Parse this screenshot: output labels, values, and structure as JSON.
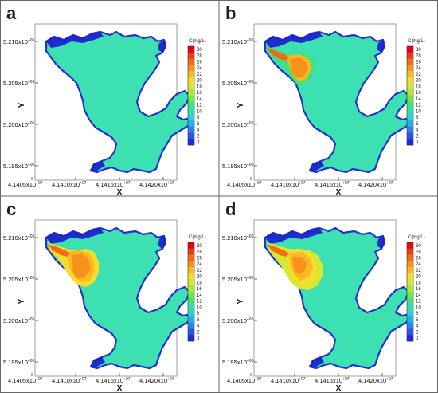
{
  "chart_data": [
    {
      "type": "heatmap",
      "panel_label": "a",
      "xlabel": "X",
      "ylabel": "Y",
      "x_ticks": [
        {
          "base": "4.1405x10",
          "exp": "+07"
        },
        {
          "base": "4.1410x10",
          "exp": "+07"
        },
        {
          "base": "4.1415x10",
          "exp": "+07"
        },
        {
          "base": "4.1420x10",
          "exp": "+07"
        }
      ],
      "y_ticks": [
        {
          "base": "5.210x10",
          "exp": "+06"
        },
        {
          "base": "5.205x10",
          "exp": "+06"
        },
        {
          "base": "5.200x10",
          "exp": "+06"
        },
        {
          "base": "5.195x10",
          "exp": "+06"
        }
      ],
      "colorbar": {
        "title": "C(mg/L)",
        "levels": [
          "30",
          "28",
          "26",
          "24",
          "22",
          "20",
          "18",
          "16",
          "14",
          "12",
          "10",
          "8",
          "6",
          "4",
          "2",
          "0"
        ]
      },
      "plume": "none",
      "background_level": "10"
    },
    {
      "type": "heatmap",
      "panel_label": "b",
      "xlabel": "X",
      "ylabel": "Y",
      "x_ticks": [
        {
          "base": "4.1405x10",
          "exp": "+07"
        },
        {
          "base": "4.1410x10",
          "exp": "+07"
        },
        {
          "base": "4.1415x10",
          "exp": "+07"
        },
        {
          "base": "4.1420x10",
          "exp": "+07"
        }
      ],
      "y_ticks": [
        {
          "base": "5.210x10",
          "exp": "+06"
        },
        {
          "base": "5.205x10",
          "exp": "+06"
        },
        {
          "base": "5.200x10",
          "exp": "+06"
        },
        {
          "base": "5.195x10",
          "exp": "+06"
        }
      ],
      "colorbar": {
        "title": "C(mg/L)",
        "levels": [
          "30",
          "28",
          "26",
          "24",
          "22",
          "20",
          "18",
          "16",
          "14",
          "12",
          "10",
          "8",
          "6",
          "4",
          "2",
          "0"
        ]
      },
      "plume": "small",
      "background_level": "10"
    },
    {
      "type": "heatmap",
      "panel_label": "c",
      "xlabel": "X",
      "ylabel": "Y",
      "x_ticks": [
        {
          "base": "4.1405x10",
          "exp": "+07"
        },
        {
          "base": "4.1410x10",
          "exp": "+07"
        },
        {
          "base": "4.1415x10",
          "exp": "+07"
        },
        {
          "base": "4.1420x10",
          "exp": "+07"
        }
      ],
      "y_ticks": [
        {
          "base": "5.210x10",
          "exp": "+06"
        },
        {
          "base": "5.205x10",
          "exp": "+06"
        },
        {
          "base": "5.200x10",
          "exp": "+06"
        },
        {
          "base": "5.195x10",
          "exp": "+06"
        }
      ],
      "colorbar": {
        "title": "C(mg/L)",
        "levels": [
          "30",
          "28",
          "26",
          "24",
          "22",
          "20",
          "18",
          "16",
          "14",
          "12",
          "10",
          "8",
          "6",
          "4",
          "2",
          "0"
        ]
      },
      "plume": "medium",
      "background_level": "10"
    },
    {
      "type": "heatmap",
      "panel_label": "d",
      "xlabel": "X",
      "ylabel": "Y",
      "x_ticks": [
        {
          "base": "4.1405x10",
          "exp": "+07"
        },
        {
          "base": "4.1410x10",
          "exp": "+07"
        },
        {
          "base": "4.1415x10",
          "exp": "+07"
        },
        {
          "base": "4.1420x10",
          "exp": "+07"
        }
      ],
      "y_ticks": [
        {
          "base": "5.210x10",
          "exp": "+06"
        },
        {
          "base": "5.205x10",
          "exp": "+06"
        },
        {
          "base": "5.200x10",
          "exp": "+06"
        },
        {
          "base": "5.195x10",
          "exp": "+06"
        }
      ],
      "colorbar": {
        "title": "C(mg/L)",
        "levels": [
          "30",
          "28",
          "26",
          "24",
          "22",
          "20",
          "18",
          "16",
          "14",
          "12",
          "10",
          "8",
          "6",
          "4",
          "2",
          "0"
        ]
      },
      "plume": "large",
      "background_level": "10"
    }
  ],
  "colors": {
    "background_water": "#3de0b0",
    "border_blue": "#2233cc",
    "deep_blue": "#1a1acc",
    "colormap": [
      "#e8000b",
      "#ee3a10",
      "#f36b16",
      "#f7931c",
      "#f9b923",
      "#f7dc2c",
      "#d6e832",
      "#a6ea3a",
      "#6fe843",
      "#40e47a",
      "#30dfae",
      "#2cd1d8",
      "#2ab0e8",
      "#2a84ec",
      "#2a55ea",
      "#1f2ae0"
    ]
  }
}
